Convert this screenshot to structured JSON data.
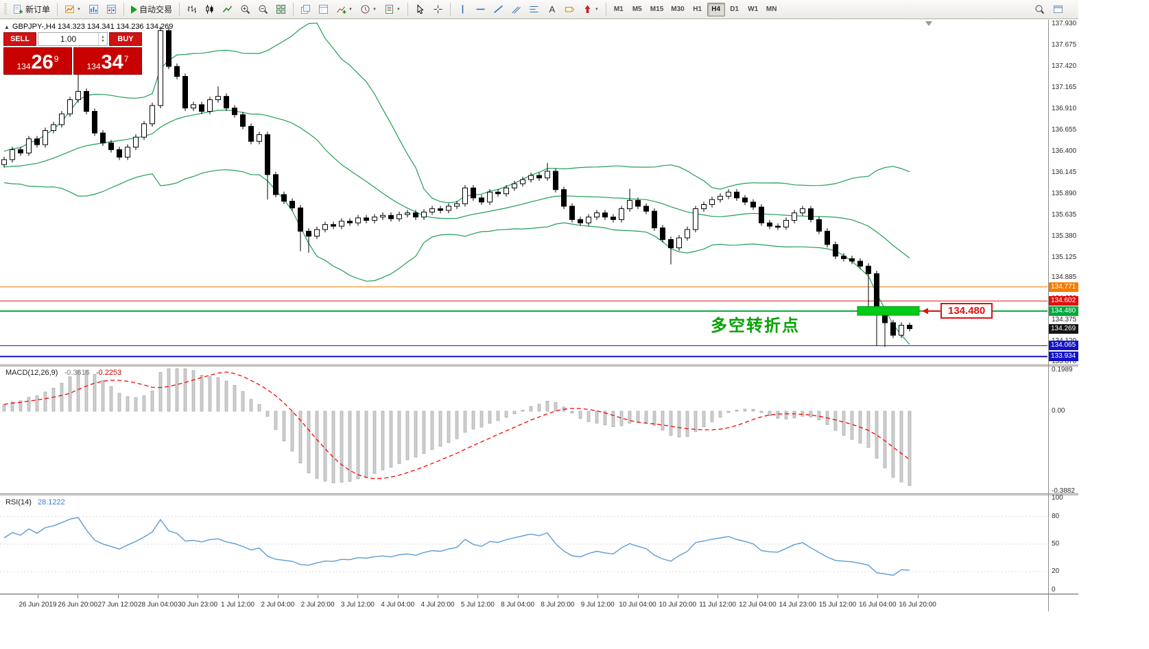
{
  "icons": {
    "caret_down": "▼",
    "collapse_triangle": "▲",
    "spin_up": "▲",
    "spin_down": "▼",
    "letter_a": "A"
  },
  "toolbar": {
    "buttons": {
      "new_order": "新订单",
      "autotrading": "自动交易"
    },
    "timeframes": [
      "M1",
      "M5",
      "M15",
      "M30",
      "H1",
      "H4",
      "D1",
      "W1",
      "MN"
    ],
    "active_timeframe": "H4"
  },
  "chart_header": {
    "symbol_line": "GBPJPY-,H4  134.323 134.341 134.236 134.269"
  },
  "trade_panel": {
    "sell_label": "SELL",
    "buy_label": "BUY",
    "volume": "1.00",
    "sell_price": {
      "prefix": "134",
      "big": "26",
      "sup": "9"
    },
    "buy_price": {
      "prefix": "134",
      "big": "34",
      "sup": "7"
    }
  },
  "annotations": {
    "turning_point": "多空转折点",
    "price_callout": "134.480",
    "callout_price": 134.48
  },
  "price_scale": {
    "ticks": [
      "137.930",
      "137.675",
      "137.420",
      "137.165",
      "136.910",
      "136.655",
      "136.400",
      "136.145",
      "135.890",
      "135.635",
      "135.380",
      "135.125",
      "134.885",
      "134.630",
      "134.375",
      "134.120",
      "133.870"
    ],
    "current_price": {
      "value": "134.269",
      "price": 134.269,
      "bg": "#141414"
    },
    "tags": [
      {
        "value": "134.771",
        "price": 134.771,
        "bg": "#f57c00"
      },
      {
        "value": "134.602",
        "price": 134.602,
        "bg": "#e01010"
      },
      {
        "value": "134.480",
        "price": 134.48,
        "bg": "#00a83c"
      },
      {
        "value": "134.065",
        "price": 134.065,
        "bg": "#1212c8"
      },
      {
        "value": "133.934",
        "price": 133.934,
        "bg": "#1212c8"
      }
    ]
  },
  "chart_data": {
    "type": "candlestick",
    "symbol": "GBPJPY-",
    "timeframe": "H4",
    "current_ohlc": {
      "open": "134.323",
      "high": "134.341",
      "low": "134.236",
      "close": "134.269"
    },
    "price_top": 137.93,
    "price_bottom": 133.87,
    "closes": [
      136.3,
      136.42,
      136.38,
      136.55,
      136.48,
      136.65,
      136.72,
      136.85,
      137.02,
      137.12,
      136.88,
      136.62,
      136.5,
      136.42,
      136.33,
      136.45,
      136.57,
      136.73,
      136.95,
      137.85,
      137.42,
      137.3,
      136.92,
      136.96,
      136.88,
      137.02,
      137.06,
      136.92,
      136.84,
      136.7,
      136.52,
      136.6,
      136.12,
      135.88,
      135.8,
      135.72,
      135.44,
      135.38,
      135.46,
      135.52,
      135.5,
      135.56,
      135.54,
      135.6,
      135.57,
      135.61,
      135.63,
      135.59,
      135.64,
      135.66,
      135.61,
      135.67,
      135.71,
      135.69,
      135.74,
      135.77,
      135.96,
      135.84,
      135.79,
      135.91,
      135.89,
      135.96,
      136.01,
      136.06,
      136.11,
      136.08,
      136.16,
      135.94,
      135.74,
      135.58,
      135.54,
      135.61,
      135.66,
      135.61,
      135.58,
      135.71,
      135.81,
      135.74,
      135.68,
      135.48,
      135.34,
      135.24,
      135.36,
      135.46,
      135.71,
      135.76,
      135.82,
      135.86,
      135.91,
      135.84,
      135.79,
      135.73,
      135.54,
      135.5,
      135.49,
      135.57,
      135.66,
      135.71,
      135.58,
      135.44,
      135.28,
      135.14,
      135.11,
      135.08,
      135.02,
      134.93,
      134.44,
      134.34,
      134.19,
      134.31,
      134.269
    ],
    "wick_overrides": {
      "9": [
        137.35,
        null
      ],
      "19": [
        137.9,
        null
      ],
      "26": [
        137.18,
        null
      ],
      "32": [
        null,
        135.82
      ],
      "36": [
        null,
        135.2
      ],
      "37": [
        null,
        135.18
      ],
      "66": [
        136.26,
        null
      ],
      "76": [
        135.95,
        null
      ],
      "81": [
        null,
        135.04
      ],
      "105": [
        null,
        134.5
      ],
      "106": [
        null,
        134.06
      ],
      "107": [
        null,
        134.05
      ],
      "110": [
        134.341,
        134.236
      ]
    },
    "hlines": [
      {
        "price": 134.771,
        "color": "#f57c00",
        "width": 1
      },
      {
        "price": 134.602,
        "color": "#e01010",
        "width": 1
      },
      {
        "price": 134.48,
        "color": "#00a83c",
        "width": 2
      },
      {
        "price": 134.065,
        "color": "#1212c8",
        "width": 1
      },
      {
        "price": 133.934,
        "color": "#1212c8",
        "width": 2
      }
    ],
    "bollinger": {
      "period": 20,
      "deviation": 2.0,
      "color": "#1f9d55"
    },
    "green_zone": {
      "start_index": 104,
      "end_index": 111.5,
      "price_top": 134.535,
      "price_bottom": 134.43,
      "fill": "#00cc16",
      "stroke": "#009012"
    },
    "indicators": {
      "macd": {
        "fast": 12,
        "slow": 26,
        "signal": 9
      },
      "rsi": {
        "period": 14
      }
    }
  },
  "macd_panel": {
    "name": "MACD(12,26,9)",
    "value1": "-0.3616",
    "value2": "-0.2253",
    "hist_color": "#cfcfcf",
    "signal_color": "#ff0000",
    "scale": [
      {
        "v": 0.1989,
        "label": "0.1989"
      },
      {
        "v": 0,
        "label": "0.00"
      },
      {
        "v": -0.3882,
        "label": "-0.3882"
      }
    ]
  },
  "rsi_panel": {
    "name": "RSI(14)",
    "value": "28.1222",
    "line_color": "#5b9bd5",
    "levels": [
      80,
      50,
      20
    ],
    "scale": [
      {
        "v": 100,
        "label": "100"
      },
      {
        "v": 80,
        "label": "80"
      },
      {
        "v": 50,
        "label": "50"
      },
      {
        "v": 20,
        "label": "20"
      },
      {
        "v": 0,
        "label": "0"
      }
    ]
  },
  "time_axis": [
    "26 Jun 2019",
    "26 Jun 20:00",
    "27 Jun 12:00",
    "28 Jun 04:00",
    "30 Jun 23:00",
    "1 Jul 12:00",
    "2 Jul 04:00",
    "2 Jul 20:00",
    "3 Jul 12:00",
    "4 Jul 04:00",
    "4 Jul 20:00",
    "5 Jul 12:00",
    "8 Jul 04:00",
    "8 Jul 20:00",
    "9 Jul 12:00",
    "10 Jul 04:00",
    "10 Jul 20:00",
    "11 Jul 12:00",
    "12 Jul 04:00",
    "14 Jul 23:00",
    "15 Jul 12:00",
    "16 Jul 04:00",
    "16 Jul 20:00"
  ]
}
